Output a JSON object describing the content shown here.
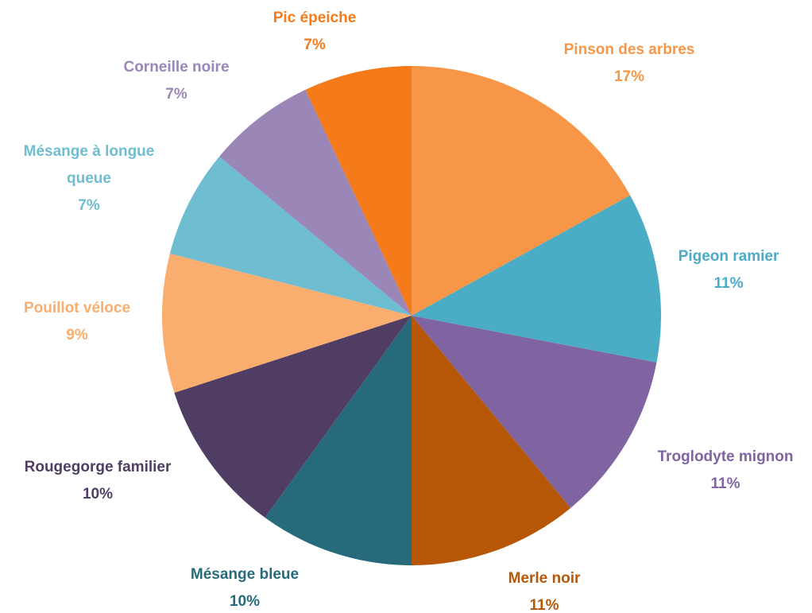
{
  "chart_data": {
    "type": "pie",
    "categories": [
      "Pinson des arbres",
      "Pigeon ramier",
      "Troglodyte mignon",
      "Merle noir",
      "Mésange bleue",
      "Rougegorge familier",
      "Pouillot véloce",
      "Mésange à longue queue",
      "Corneille noire",
      "Pic épeiche"
    ],
    "values": [
      17,
      11,
      11,
      11,
      10,
      10,
      9,
      7,
      7,
      7
    ],
    "value_labels": [
      "17%",
      "11%",
      "11%",
      "11%",
      "10%",
      "10%",
      "9%",
      "7%",
      "7%",
      "7%"
    ],
    "colors": [
      "#F79646",
      "#4BACC6",
      "#8064A2",
      "#B65708",
      "#276A7C",
      "#4F3D64",
      "#F9AD6F",
      "#6FBDD1",
      "#9B86B8",
      "#F47A1A"
    ]
  }
}
